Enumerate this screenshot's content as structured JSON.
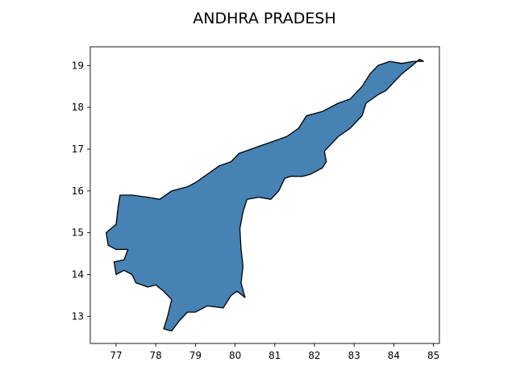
{
  "title": "ANDHRA PRADESH",
  "colors": {
    "fill": "#4682b4",
    "edge": "#000000",
    "background": "#ffffff"
  },
  "chart_data": {
    "type": "map",
    "title": "ANDHRA PRADESH",
    "xlabel": "",
    "ylabel": "",
    "xlim": [
      76.35,
      85.15
    ],
    "ylim": [
      12.35,
      19.45
    ],
    "xticks": [
      77,
      78,
      79,
      80,
      81,
      82,
      83,
      84,
      85
    ],
    "yticks": [
      13,
      14,
      15,
      16,
      17,
      18,
      19
    ],
    "grid": false,
    "fill_color": "#4682b4",
    "edge_color": "#000000",
    "outline": [
      [
        84.75,
        19.1
      ],
      [
        84.65,
        19.15
      ],
      [
        84.4,
        18.95
      ],
      [
        84.2,
        18.8
      ],
      [
        84.0,
        18.6
      ],
      [
        83.8,
        18.4
      ],
      [
        83.6,
        18.3
      ],
      [
        83.3,
        18.1
      ],
      [
        83.2,
        17.8
      ],
      [
        82.9,
        17.5
      ],
      [
        82.6,
        17.3
      ],
      [
        82.4,
        17.1
      ],
      [
        82.25,
        16.95
      ],
      [
        82.3,
        16.7
      ],
      [
        82.2,
        16.55
      ],
      [
        81.9,
        16.4
      ],
      [
        81.7,
        16.35
      ],
      [
        81.4,
        16.35
      ],
      [
        81.25,
        16.3
      ],
      [
        81.1,
        16.0
      ],
      [
        80.9,
        15.8
      ],
      [
        80.6,
        15.85
      ],
      [
        80.3,
        15.8
      ],
      [
        80.2,
        15.5
      ],
      [
        80.12,
        15.1
      ],
      [
        80.15,
        14.6
      ],
      [
        80.2,
        14.2
      ],
      [
        80.15,
        13.8
      ],
      [
        80.25,
        13.45
      ],
      [
        80.05,
        13.6
      ],
      [
        79.9,
        13.5
      ],
      [
        79.7,
        13.2
      ],
      [
        79.3,
        13.25
      ],
      [
        79.0,
        13.1
      ],
      [
        78.8,
        13.1
      ],
      [
        78.6,
        12.9
      ],
      [
        78.4,
        12.65
      ],
      [
        78.2,
        12.7
      ],
      [
        78.3,
        13.0
      ],
      [
        78.4,
        13.4
      ],
      [
        78.2,
        13.6
      ],
      [
        78.0,
        13.75
      ],
      [
        77.8,
        13.7
      ],
      [
        77.5,
        13.8
      ],
      [
        77.4,
        14.0
      ],
      [
        77.2,
        14.1
      ],
      [
        77.0,
        14.0
      ],
      [
        76.95,
        14.3
      ],
      [
        77.2,
        14.35
      ],
      [
        77.3,
        14.6
      ],
      [
        77.0,
        14.6
      ],
      [
        76.8,
        14.7
      ],
      [
        76.75,
        15.0
      ],
      [
        77.0,
        15.2
      ],
      [
        77.05,
        15.6
      ],
      [
        77.1,
        15.9
      ],
      [
        77.4,
        15.9
      ],
      [
        77.8,
        15.85
      ],
      [
        78.1,
        15.8
      ],
      [
        78.4,
        16.0
      ],
      [
        78.8,
        16.1
      ],
      [
        79.0,
        16.2
      ],
      [
        79.3,
        16.4
      ],
      [
        79.6,
        16.6
      ],
      [
        79.9,
        16.7
      ],
      [
        80.1,
        16.9
      ],
      [
        80.4,
        17.0
      ],
      [
        80.7,
        17.1
      ],
      [
        81.0,
        17.2
      ],
      [
        81.3,
        17.3
      ],
      [
        81.6,
        17.5
      ],
      [
        81.8,
        17.8
      ],
      [
        82.2,
        17.9
      ],
      [
        82.6,
        18.1
      ],
      [
        82.9,
        18.2
      ],
      [
        83.2,
        18.5
      ],
      [
        83.4,
        18.8
      ],
      [
        83.6,
        19.0
      ],
      [
        83.9,
        19.1
      ],
      [
        84.2,
        19.05
      ],
      [
        84.5,
        19.1
      ],
      [
        84.75,
        19.1
      ]
    ]
  }
}
